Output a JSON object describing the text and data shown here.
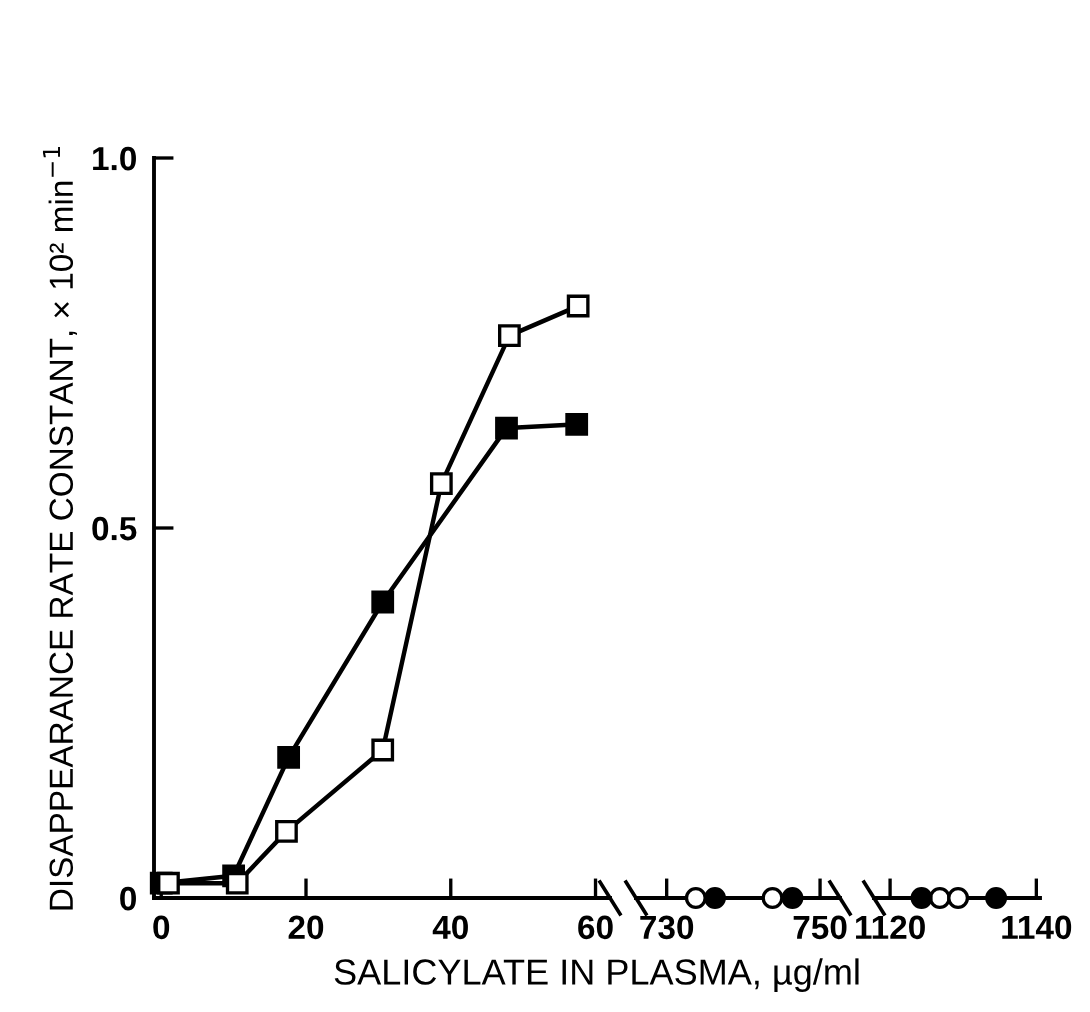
{
  "chart_data": [
    {
      "type": "line",
      "ylabel": "DISAPPEARANCE RATE CONSTANT, × 10² min$^{−1}$",
      "xlim": [
        -1,
        62
      ],
      "xticks": [
        0,
        20,
        40,
        60
      ],
      "ylim": [
        0,
        1.0
      ],
      "yticks": [
        0,
        0.5,
        {
          "value": 1.0,
          "label": "1.0"
        }
      ],
      "grid": false,
      "legend": false,
      "series": [
        {
          "marker": "square",
          "color": "#000000",
          "x": [
            0,
            10,
            17.6,
            30.6,
            47.7,
            57.4
          ],
          "values": [
            0.02,
            0.03,
            0.19,
            0.4,
            0.635,
            0.64
          ]
        },
        {
          "marker": "square",
          "color": "#ffffff",
          "x": [
            1,
            10.5,
            17.3,
            30.6,
            38.7,
            48.1,
            57.6
          ],
          "values": [
            0.02,
            0.02,
            0.09,
            0.2,
            0.56,
            0.76,
            0.8
          ]
        }
      ]
    },
    {
      "type": "scatter",
      "xlabel": "SALICYLATE IN PLASMA, µg/ml",
      "xlim": [
        726,
        752.6
      ],
      "xticks": [
        730,
        750
      ],
      "ylim": [
        0,
        1.0
      ],
      "tick_labels": "x",
      "grid": false,
      "legend": false,
      "series": [
        {
          "marker": "circle",
          "color": "#ffffff",
          "x": [
            733.8,
            743.8
          ],
          "values": [
            0,
            0
          ]
        },
        {
          "marker": "circle",
          "color": "#000000",
          "x": [
            736.3,
            746.4
          ],
          "values": [
            0,
            0
          ]
        }
      ]
    },
    {
      "type": "scatter",
      "xlim": [
        1117.8,
        1140.5
      ],
      "xticks": [
        1120,
        1140
      ],
      "ylim": [
        0,
        1.0
      ],
      "tick_labels": "x",
      "grid": false,
      "legend": false,
      "series": [
        {
          "marker": "circle",
          "color": "#ffffff",
          "x": [
            1126.8,
            1129.3
          ],
          "values": [
            0,
            0
          ]
        },
        {
          "marker": "circle",
          "color": "#000000",
          "x": [
            1124.3,
            1134.5
          ],
          "values": [
            0,
            0
          ]
        }
      ]
    }
  ]
}
